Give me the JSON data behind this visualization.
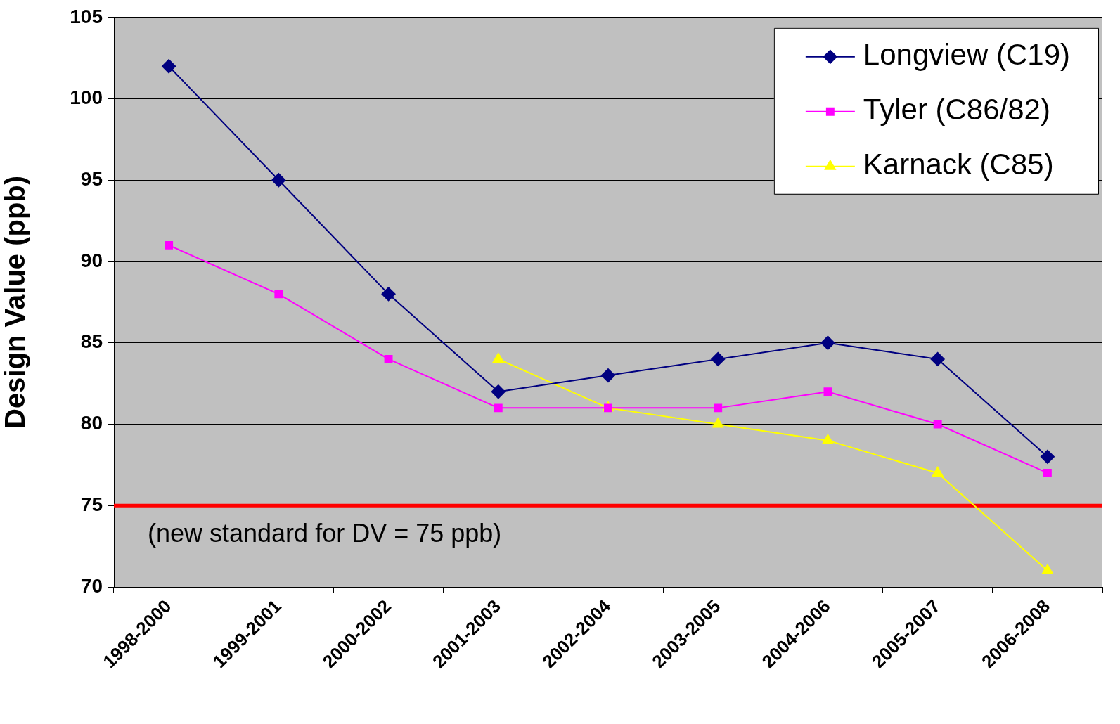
{
  "chart_data": {
    "type": "line",
    "ylabel": "Design Value (ppb)",
    "categories": [
      "1998-2000",
      "1999-2001",
      "2000-2002",
      "2001-2003",
      "2002-2004",
      "2003-2005",
      "2004-2006",
      "2005-2007",
      "2006-2008"
    ],
    "series": [
      {
        "name": "Longview (C19)",
        "color": "#000080",
        "marker": "diamond",
        "values": [
          102,
          95,
          88,
          82,
          83,
          84,
          85,
          84,
          78
        ]
      },
      {
        "name": "Tyler (C86/82)",
        "color": "#ff00ff",
        "marker": "square",
        "values": [
          91,
          88,
          84,
          81,
          81,
          81,
          82,
          80,
          77
        ]
      },
      {
        "name": "Karnack (C85)",
        "color": "#ffff00",
        "marker": "triangle",
        "values": [
          null,
          null,
          null,
          84,
          81,
          80,
          79,
          77,
          71
        ]
      }
    ],
    "ylim": [
      70,
      105
    ],
    "yticks": [
      70,
      75,
      80,
      85,
      90,
      95,
      100,
      105
    ],
    "ref_lines": [
      {
        "axis": "y",
        "value": 75,
        "label": "(new standard for DV = 75 ppb)",
        "color": "#ff0000"
      }
    ],
    "grid": "y",
    "legend": "top right",
    "line_style": "solid"
  }
}
